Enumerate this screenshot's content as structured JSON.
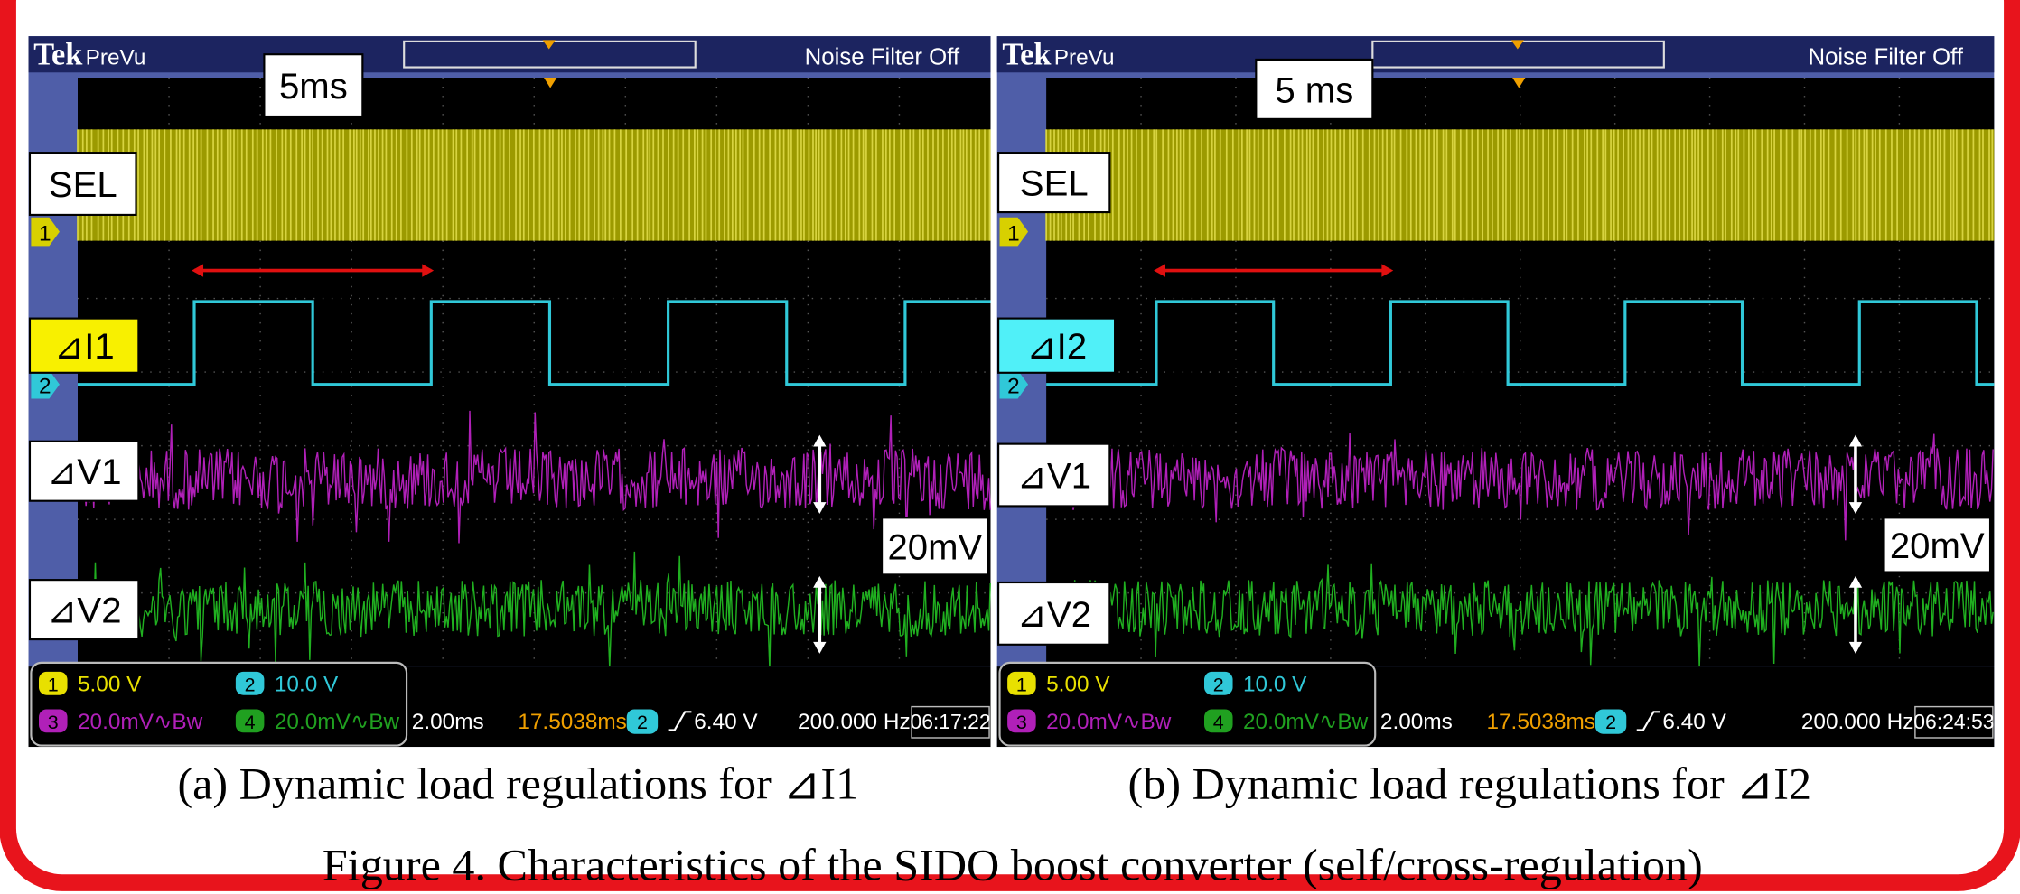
{
  "panels": [
    {
      "header": {
        "brand": "Tek",
        "mode": "PreVu",
        "filter": "Noise Filter Off"
      },
      "labels": {
        "time": "5ms",
        "sel": "SEL",
        "current": "⊿I1",
        "v1": "⊿V1",
        "v2": "⊿V2",
        "scale": "20mV"
      },
      "channels": [
        {
          "marker": "1",
          "value": "5.00 V"
        },
        {
          "marker": "2",
          "value": "10.0 V"
        },
        {
          "marker": "3",
          "value": "20.0mV∿Bw"
        },
        {
          "marker": "4",
          "value": "20.0mV∿Bw"
        }
      ],
      "status": {
        "timebase": "2.00ms",
        "position": "17.5038ms",
        "trigger_channel": "2",
        "trigger": "6.40 V",
        "frequency": "200.000 Hz",
        "clock": "06:17:22"
      },
      "caption": "(a)  Dynamic load regulations for ⊿I1"
    },
    {
      "header": {
        "brand": "Tek",
        "mode": "PreVu",
        "filter": "Noise Filter Off"
      },
      "labels": {
        "time": "5  ms",
        "sel": "SEL",
        "current": "⊿I2",
        "v1": "⊿V1",
        "v2": "⊿V2",
        "scale": "20mV"
      },
      "channels": [
        {
          "marker": "1",
          "value": "5.00 V"
        },
        {
          "marker": "2",
          "value": "10.0 V"
        },
        {
          "marker": "3",
          "value": "20.0mV∿Bw"
        },
        {
          "marker": "4",
          "value": "20.0mV∿Bw"
        }
      ],
      "status": {
        "timebase": "2.00ms",
        "position": "17.5038ms",
        "trigger_channel": "2",
        "trigger": "6.40 V",
        "frequency": "200.000 Hz",
        "clock": "06:24:53"
      },
      "caption": "(b) Dynamic load regulations for ⊿I2"
    }
  ],
  "figure_caption": "Figure 4. Characteristics of the SIDO boost converter (self/cross-regulation)"
}
